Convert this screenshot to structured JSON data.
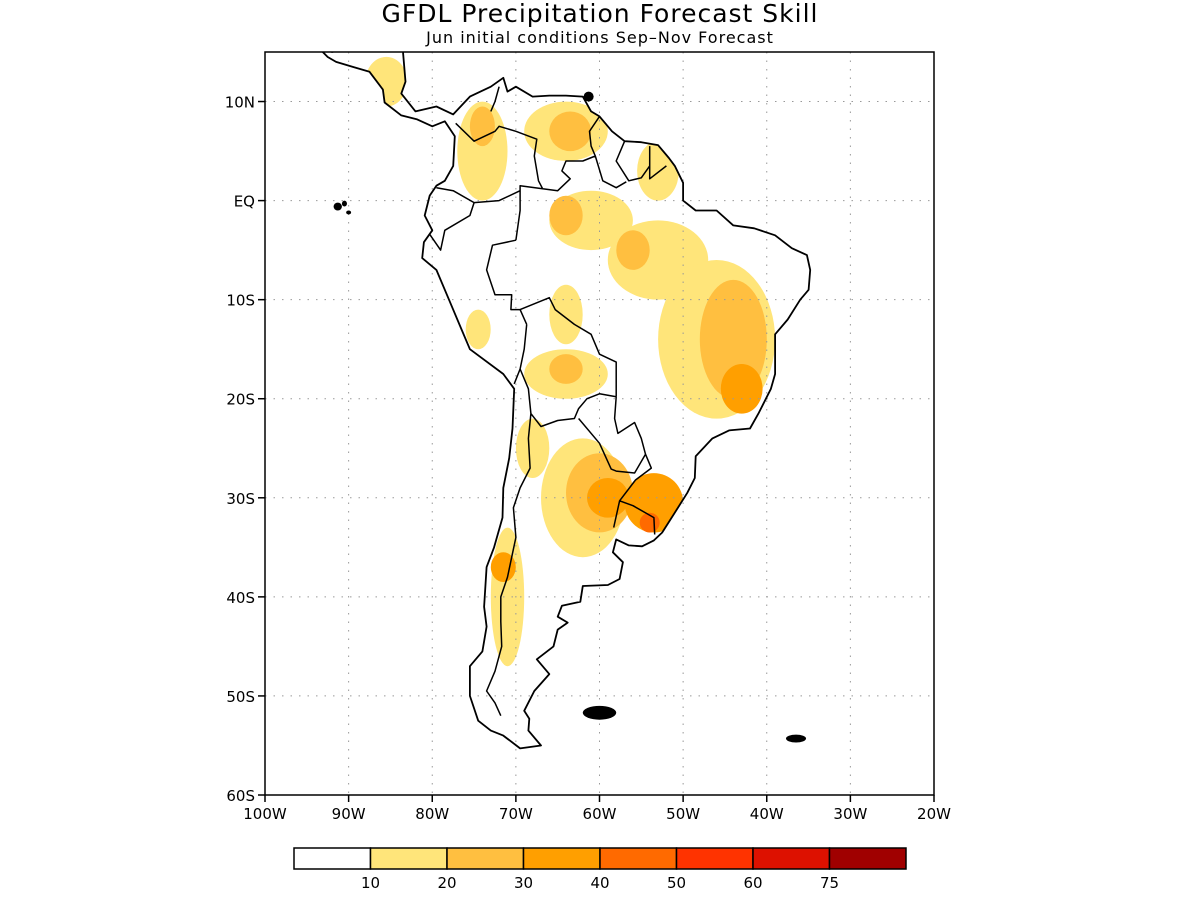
{
  "header": {
    "title": "GFDL Precipitation Forecast Skill",
    "subtitle": "Jun initial conditions  Sep–Nov Forecast"
  },
  "map": {
    "region": "South America",
    "lon_range": [
      -100,
      -20
    ],
    "lat_range": [
      -60,
      15
    ],
    "gridlines": "dotted",
    "y_ticks": [
      {
        "lat": 10,
        "label": "10N"
      },
      {
        "lat": 0,
        "label": "EQ"
      },
      {
        "lat": -10,
        "label": "10S"
      },
      {
        "lat": -20,
        "label": "20S"
      },
      {
        "lat": -30,
        "label": "30S"
      },
      {
        "lat": -40,
        "label": "40S"
      },
      {
        "lat": -50,
        "label": "50S"
      },
      {
        "lat": -60,
        "label": "60S"
      }
    ],
    "x_ticks": [
      {
        "lon": -100,
        "label": "100W"
      },
      {
        "lon": -90,
        "label": "90W"
      },
      {
        "lon": -80,
        "label": "80W"
      },
      {
        "lon": -70,
        "label": "70W"
      },
      {
        "lon": -60,
        "label": "60W"
      },
      {
        "lon": -50,
        "label": "50W"
      },
      {
        "lon": -40,
        "label": "40W"
      },
      {
        "lon": -30,
        "label": "30W"
      },
      {
        "lon": -20,
        "label": "20W"
      }
    ]
  },
  "colorbar": {
    "bins": [
      {
        "color": "#ffffff"
      },
      {
        "color": "#ffe57a"
      },
      {
        "color": "#ffbf40"
      },
      {
        "color": "#ff9f00"
      },
      {
        "color": "#ff6a00"
      },
      {
        "color": "#ff3300"
      },
      {
        "color": "#dd1100"
      },
      {
        "color": "#a00000"
      }
    ],
    "labels": [
      "10",
      "20",
      "30",
      "40",
      "50",
      "60",
      "75"
    ]
  },
  "skill_regions": [
    {
      "name": "central-america",
      "level": 1,
      "lon": -85.5,
      "lat": 12,
      "r_lon": 2.5,
      "r_lat": 2.5
    },
    {
      "name": "colombia",
      "level": 1,
      "lon": -74,
      "lat": 5,
      "r_lon": 3,
      "r_lat": 5
    },
    {
      "name": "colombia-core",
      "level": 2,
      "lon": -74,
      "lat": 7.5,
      "r_lon": 1.5,
      "r_lat": 2
    },
    {
      "name": "venezuela",
      "level": 1,
      "lon": -64,
      "lat": 7,
      "r_lon": 5,
      "r_lat": 3
    },
    {
      "name": "venezuela-core",
      "level": 2,
      "lon": -63.5,
      "lat": 7,
      "r_lon": 2.5,
      "r_lat": 2
    },
    {
      "name": "guiana",
      "level": 1,
      "lon": -53,
      "lat": 3,
      "r_lon": 2.5,
      "r_lat": 3
    },
    {
      "name": "amazon-north",
      "level": 1,
      "lon": -61,
      "lat": -2,
      "r_lon": 5,
      "r_lat": 3
    },
    {
      "name": "amazon-north-core",
      "level": 2,
      "lon": -64,
      "lat": -1.5,
      "r_lon": 2,
      "r_lat": 2
    },
    {
      "name": "amazon-central",
      "level": 1,
      "lon": -53,
      "lat": -6,
      "r_lon": 6,
      "r_lat": 4
    },
    {
      "name": "amazon-central-core",
      "level": 2,
      "lon": -56,
      "lat": -5,
      "r_lon": 2,
      "r_lat": 2
    },
    {
      "name": "peru-bolivia",
      "level": 1,
      "lon": -64,
      "lat": -11.5,
      "r_lon": 2,
      "r_lat": 3
    },
    {
      "name": "bolivia",
      "level": 1,
      "lon": -64,
      "lat": -17.5,
      "r_lon": 5,
      "r_lat": 2.5
    },
    {
      "name": "bolivia-core",
      "level": 2,
      "lon": -64,
      "lat": -17,
      "r_lon": 2,
      "r_lat": 1.5
    },
    {
      "name": "brazil-east",
      "level": 1,
      "lon": -46,
      "lat": -14,
      "r_lon": 7,
      "r_lat": 8
    },
    {
      "name": "brazil-east-core",
      "level": 2,
      "lon": -44,
      "lat": -14,
      "r_lon": 4,
      "r_lat": 6
    },
    {
      "name": "brazil-east-peak",
      "level": 3,
      "lon": -43,
      "lat": -19,
      "r_lon": 2.5,
      "r_lat": 2.5
    },
    {
      "name": "peru-coast",
      "level": 1,
      "lon": -74.5,
      "lat": -13,
      "r_lon": 1.5,
      "r_lat": 2
    },
    {
      "name": "andes-north-arg",
      "level": 1,
      "lon": -68,
      "lat": -25,
      "r_lon": 2,
      "r_lat": 3
    },
    {
      "name": "argentina-central",
      "level": 1,
      "lon": -62,
      "lat": -30,
      "r_lon": 5,
      "r_lat": 6
    },
    {
      "name": "argentina-central-core",
      "level": 2,
      "lon": -60,
      "lat": -29.5,
      "r_lon": 4,
      "r_lat": 4
    },
    {
      "name": "argentina-central-peak",
      "level": 3,
      "lon": -59,
      "lat": -30,
      "r_lon": 2.5,
      "r_lat": 2
    },
    {
      "name": "uruguay-south-brazil",
      "level": 3,
      "lon": -53.5,
      "lat": -30.5,
      "r_lon": 3.5,
      "r_lat": 3
    },
    {
      "name": "uruguay-peak",
      "level": 4,
      "lon": -54,
      "lat": -32.5,
      "r_lon": 1.2,
      "r_lat": 1
    },
    {
      "name": "chile-andes",
      "level": 1,
      "lon": -71,
      "lat": -40,
      "r_lon": 2,
      "r_lat": 7
    },
    {
      "name": "chile-andes-core",
      "level": 3,
      "lon": -71.5,
      "lat": -37,
      "r_lon": 1.5,
      "r_lat": 1.5
    }
  ]
}
